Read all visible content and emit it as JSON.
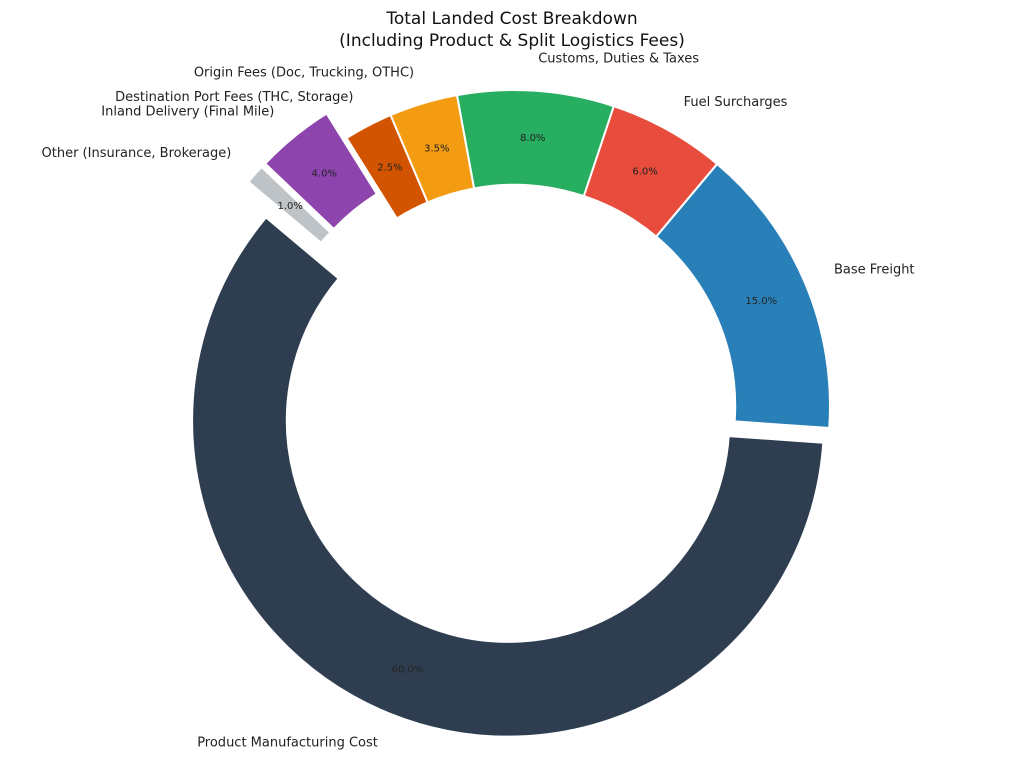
{
  "chart_data": {
    "type": "donut",
    "title": "Total Landed Cost Breakdown\n(Including Product & Split Logistics Fees)",
    "categories": [
      "Product Manufacturing Cost",
      "Base Freight",
      "Fuel Surcharges",
      "Customs, Duties & Taxes",
      "Origin Fees (Doc, Trucking, OTHC)",
      "Destination Port Fees (THC, Storage)",
      "Inland Delivery (Final Mile)",
      "Other (Insurance, Brokerage)"
    ],
    "values": [
      60.0,
      15.0,
      6.0,
      8.0,
      3.5,
      2.5,
      4.0,
      1.0
    ],
    "value_labels": [
      "60.0%",
      "15.0%",
      "6.0%",
      "8.0%",
      "3.5%",
      "2.5%",
      "4.0%",
      "1.0%"
    ],
    "colors": [
      "#2e3e50",
      "#2980b9",
      "#e74c3c",
      "#27ae60",
      "#f39c12",
      "#d35400",
      "#8e44ad",
      "#bdc3c7"
    ]
  }
}
